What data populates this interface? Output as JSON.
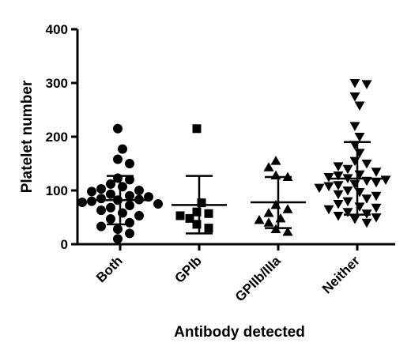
{
  "chart_data": {
    "type": "scatter",
    "title": "",
    "xlabel": "Antibody detected",
    "ylabel": "Platelet number",
    "categories": [
      "Both",
      "GPIb",
      "GPIIb/IIIa",
      "Neither"
    ],
    "ylim": [
      0,
      400
    ],
    "yticks": [
      0,
      100,
      200,
      300,
      400
    ],
    "grid": false,
    "legend": "none",
    "series": [
      {
        "category": "Both",
        "marker": "circle",
        "mean": 82,
        "sd_low": 37,
        "sd_high": 127,
        "values": [
          215,
          177,
          158,
          150,
          123,
          120,
          112,
          107,
          103,
          100,
          98,
          93,
          90,
          88,
          85,
          83,
          82,
          80,
          78,
          75,
          72,
          68,
          63,
          58,
          53,
          47,
          40,
          33,
          28,
          20,
          10
        ]
      },
      {
        "category": "GPIb",
        "marker": "square",
        "mean": 73,
        "sd_low": 20,
        "sd_high": 127,
        "values": [
          215,
          77,
          60,
          57,
          53,
          48,
          37,
          30
        ]
      },
      {
        "category": "GPIIb/IIIa",
        "marker": "triangle-up",
        "mean": 78,
        "sd_low": 30,
        "sd_high": 125,
        "values": [
          155,
          143,
          128,
          125,
          73,
          65,
          58,
          48,
          45,
          40,
          28,
          23
        ]
      },
      {
        "category": "Neither",
        "marker": "triangle-down",
        "mean": 122,
        "sd_low": 55,
        "sd_high": 190,
        "values": [
          300,
          298,
          275,
          258,
          220,
          200,
          185,
          170,
          155,
          150,
          145,
          140,
          135,
          130,
          128,
          125,
          123,
          120,
          118,
          115,
          112,
          110,
          108,
          105,
          100,
          97,
          93,
          90,
          85,
          80,
          75,
          70,
          68,
          65,
          60,
          57,
          53,
          50,
          47,
          40
        ]
      }
    ]
  },
  "colors": {
    "ink": "#000000",
    "background": "#ffffff"
  }
}
